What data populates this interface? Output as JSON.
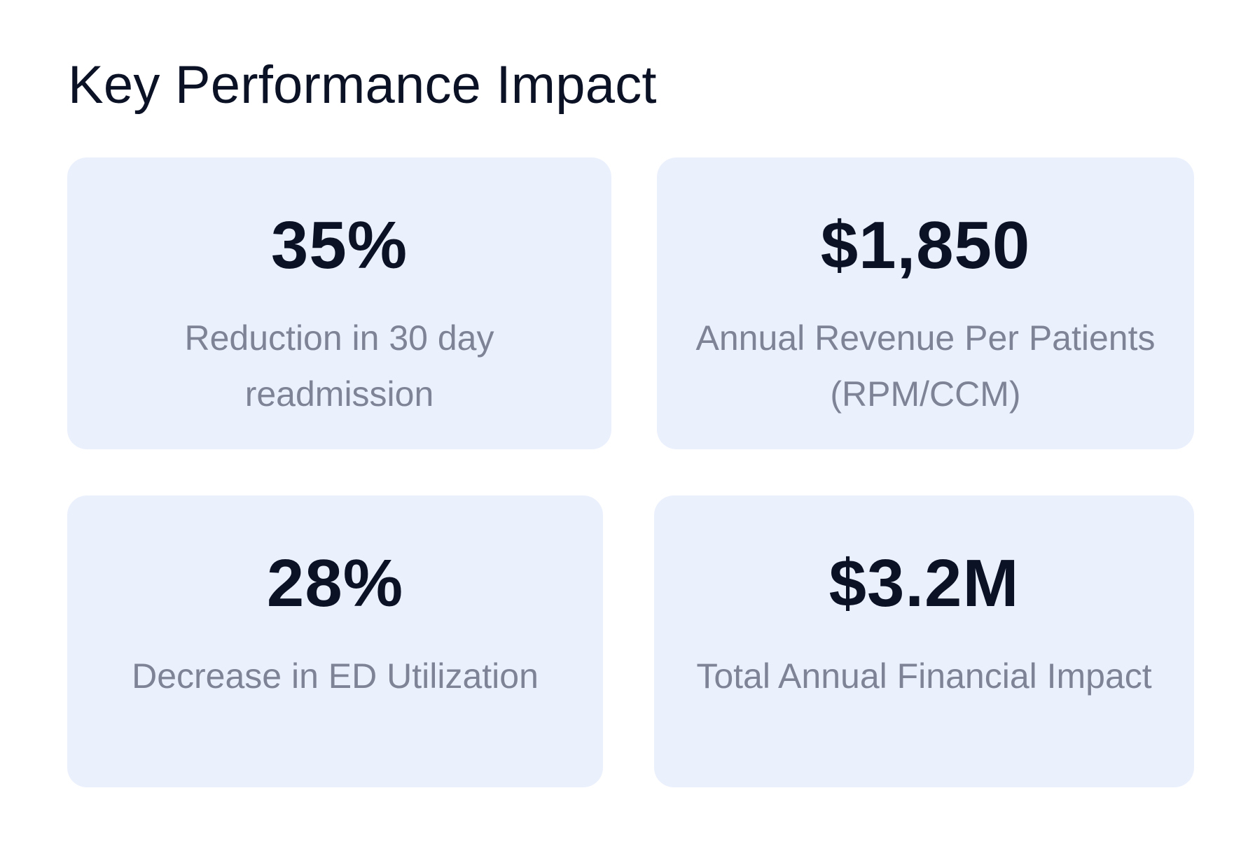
{
  "title": "Key Performance Impact",
  "cards": [
    {
      "value": "35%",
      "label": "Reduction in 30 day readmission"
    },
    {
      "value": "$1,850",
      "label": "Annual Revenue Per Patients (RPM/CCM)"
    },
    {
      "value": "28%",
      "label": "Decrease in ED Utilization"
    },
    {
      "value": "$3.2M",
      "label": "Total Annual Financial Impact"
    }
  ],
  "colors": {
    "card_background": "#ebf0fd",
    "value_text": "#0c1226",
    "label_text": "#7e8496"
  }
}
